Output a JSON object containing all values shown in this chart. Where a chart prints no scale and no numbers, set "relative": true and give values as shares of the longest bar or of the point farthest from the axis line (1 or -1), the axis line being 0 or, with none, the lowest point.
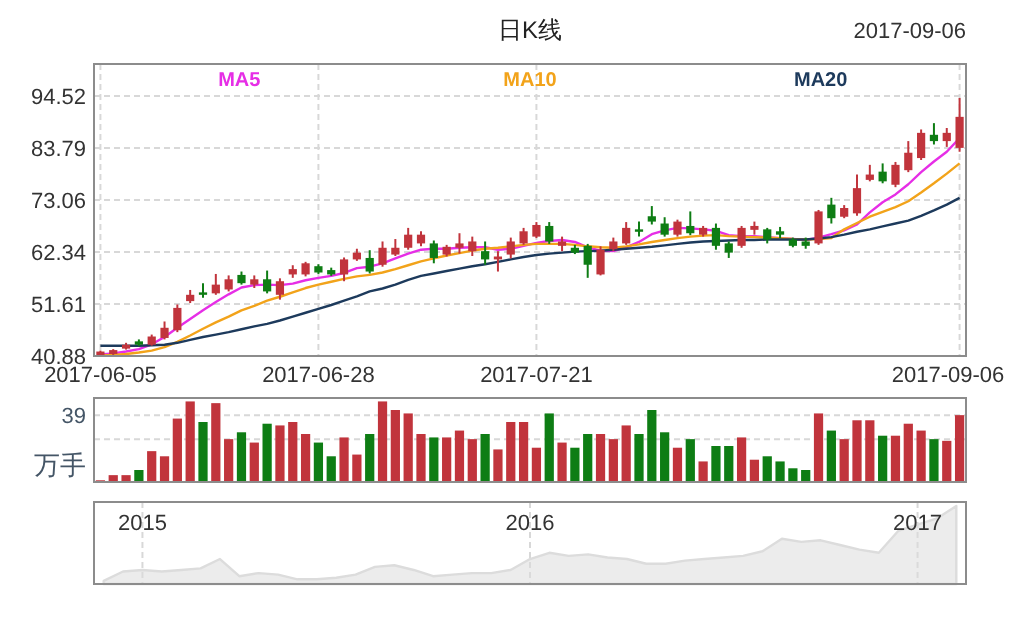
{
  "chart_data": [
    {
      "type": "candlestick",
      "title": "日K线",
      "annotations": [
        "2017-09-06"
      ],
      "categories": [
        "2017-06-05",
        null,
        null,
        null,
        null,
        null,
        null,
        null,
        null,
        null,
        null,
        null,
        null,
        null,
        null,
        null,
        null,
        "2017-06-28",
        null,
        null,
        null,
        null,
        null,
        null,
        null,
        null,
        null,
        null,
        null,
        null,
        null,
        null,
        null,
        null,
        "2017-07-21",
        null,
        null,
        null,
        null,
        null,
        null,
        null,
        null,
        null,
        null,
        null,
        null,
        null,
        null,
        null,
        null,
        null,
        null,
        null,
        null,
        null,
        null,
        null,
        null,
        null,
        null,
        null,
        null,
        null,
        null,
        null,
        null,
        "2017-09-06"
      ],
      "ohlc": [
        [
          41.0,
          42.0,
          40.9,
          41.8
        ],
        [
          41.3,
          42.3,
          41.1,
          42.1
        ],
        [
          42.4,
          43.6,
          42.2,
          43.2
        ],
        [
          43.9,
          44.3,
          42.9,
          43.2
        ],
        [
          43.2,
          45.3,
          43.0,
          44.9
        ],
        [
          44.6,
          48.0,
          44.3,
          46.7
        ],
        [
          46.2,
          51.5,
          45.8,
          50.8
        ],
        [
          52.2,
          54.5,
          51.8,
          53.5
        ],
        [
          54.0,
          55.9,
          52.9,
          53.5
        ],
        [
          53.8,
          57.8,
          53.5,
          55.6
        ],
        [
          54.6,
          57.5,
          54.2,
          56.7
        ],
        [
          57.6,
          58.3,
          55.6,
          55.9
        ],
        [
          55.6,
          57.5,
          54.9,
          56.7
        ],
        [
          56.7,
          58.5,
          53.8,
          54.2
        ],
        [
          53.5,
          56.9,
          52.5,
          56.3
        ],
        [
          57.7,
          59.6,
          57.0,
          58.8
        ],
        [
          57.7,
          60.3,
          57.3,
          60.0
        ],
        [
          59.4,
          59.8,
          57.8,
          58.1
        ],
        [
          58.6,
          59.1,
          57.4,
          57.7
        ],
        [
          57.7,
          61.2,
          56.3,
          60.8
        ],
        [
          60.8,
          63.0,
          60.5,
          62.2
        ],
        [
          61.1,
          62.7,
          57.9,
          58.3
        ],
        [
          59.7,
          64.5,
          59.3,
          63.2
        ],
        [
          61.8,
          65.0,
          61.5,
          63.2
        ],
        [
          63.2,
          67.3,
          62.8,
          65.9
        ],
        [
          64.1,
          66.6,
          63.5,
          65.9
        ],
        [
          64.1,
          64.7,
          60.0,
          61.1
        ],
        [
          61.8,
          63.8,
          61.4,
          63.4
        ],
        [
          63.2,
          66.2,
          62.0,
          64.1
        ],
        [
          62.5,
          65.5,
          61.5,
          64.5
        ],
        [
          62.5,
          64.5,
          59.7,
          60.8
        ],
        [
          60.8,
          62.5,
          58.3,
          61.4
        ],
        [
          61.8,
          65.3,
          61.0,
          64.5
        ],
        [
          64.1,
          67.3,
          63.8,
          66.6
        ],
        [
          65.5,
          68.5,
          65.2,
          67.9
        ],
        [
          67.7,
          68.5,
          64.0,
          64.5
        ],
        [
          63.6,
          65.5,
          62.5,
          64.5
        ],
        [
          63.2,
          63.8,
          61.9,
          62.2
        ],
        [
          63.6,
          64.0,
          57.0,
          59.7
        ],
        [
          57.7,
          63.5,
          57.5,
          62.8
        ],
        [
          62.9,
          65.3,
          62.5,
          64.5
        ],
        [
          64.1,
          68.5,
          63.8,
          67.3
        ],
        [
          67.0,
          68.6,
          65.5,
          66.5
        ],
        [
          69.7,
          71.8,
          68.0,
          68.6
        ],
        [
          68.2,
          69.5,
          65.5,
          65.9
        ],
        [
          65.9,
          69.0,
          65.5,
          68.6
        ],
        [
          67.7,
          70.7,
          65.8,
          66.2
        ],
        [
          65.9,
          67.7,
          65.5,
          67.3
        ],
        [
          67.3,
          68.2,
          62.8,
          63.6
        ],
        [
          64.1,
          64.5,
          61.1,
          62.2
        ],
        [
          63.6,
          67.7,
          63.2,
          67.3
        ],
        [
          66.9,
          68.6,
          65.9,
          67.7
        ],
        [
          67.0,
          67.3,
          64.1,
          64.9
        ],
        [
          66.6,
          67.5,
          65.2,
          65.9
        ],
        [
          64.9,
          65.3,
          63.3,
          63.6
        ],
        [
          64.5,
          65.3,
          63.0,
          63.6
        ],
        [
          64.1,
          71.0,
          63.8,
          70.7
        ],
        [
          72.1,
          73.5,
          68.2,
          69.3
        ],
        [
          69.6,
          72.0,
          69.3,
          71.4
        ],
        [
          70.3,
          78.3,
          69.8,
          75.5
        ],
        [
          77.2,
          80.3,
          76.9,
          78.3
        ],
        [
          78.9,
          80.6,
          76.5,
          76.9
        ],
        [
          76.2,
          80.9,
          75.7,
          80.3
        ],
        [
          79.2,
          85.2,
          78.8,
          82.8
        ],
        [
          81.7,
          87.6,
          81.3,
          86.9
        ],
        [
          86.5,
          88.9,
          84.5,
          85.2
        ],
        [
          85.2,
          87.9,
          84.0,
          86.9
        ],
        [
          83.8,
          94.1,
          83.0,
          90.2
        ]
      ],
      "colors": [
        "#c1343c",
        "#c1343c",
        "#c1343c",
        "#0e7d14",
        "#c1343c",
        "#c1343c",
        "#c1343c",
        "#c1343c",
        "#0e7d14",
        "#c1343c",
        "#c1343c",
        "#0e7d14",
        "#c1343c",
        "#0e7d14",
        "#c1343c",
        "#c1343c",
        "#c1343c",
        "#0e7d14",
        "#0e7d14",
        "#c1343c",
        "#c1343c",
        "#0e7d14",
        "#c1343c",
        "#c1343c",
        "#c1343c",
        "#c1343c",
        "#0e7d14",
        "#c1343c",
        "#c1343c",
        "#c1343c",
        "#0e7d14",
        "#c1343c",
        "#c1343c",
        "#c1343c",
        "#c1343c",
        "#0e7d14",
        "#c1343c",
        "#0e7d14",
        "#0e7d14",
        "#c1343c",
        "#c1343c",
        "#c1343c",
        "#0e7d14",
        "#0e7d14",
        "#0e7d14",
        "#c1343c",
        "#0e7d14",
        "#c1343c",
        "#0e7d14",
        "#0e7d14",
        "#c1343c",
        "#c1343c",
        "#0e7d14",
        "#0e7d14",
        "#0e7d14",
        "#0e7d14",
        "#c1343c",
        "#0e7d14",
        "#c1343c",
        "#c1343c",
        "#c1343c",
        "#0e7d14",
        "#c1343c",
        "#c1343c",
        "#c1343c",
        "#0e7d14",
        "#c1343c",
        "#c1343c"
      ],
      "series": [
        {
          "name": "MA5",
          "type": "line",
          "color": "#e62ee6",
          "values": [
            41.2,
            41.4,
            41.8,
            42.3,
            43.3,
            44.8,
            46.7,
            48.5,
            50.3,
            52.0,
            53.6,
            55.0,
            55.5,
            55.6,
            55.5,
            55.8,
            56.5,
            57.0,
            57.4,
            58.0,
            59.0,
            59.3,
            60.0,
            61.0,
            62.0,
            62.8,
            63.0,
            63.0,
            63.2,
            63.3,
            63.3,
            62.8,
            63.0,
            63.6,
            64.2,
            64.6,
            64.8,
            64.4,
            63.3,
            62.6,
            62.5,
            63.3,
            64.4,
            66.0,
            66.8,
            67.3,
            67.2,
            67.0,
            66.7,
            65.8,
            65.6,
            65.6,
            65.4,
            65.2,
            65.0,
            64.8,
            65.3,
            66.0,
            66.8,
            68.0,
            70.5,
            72.6,
            74.2,
            76.3,
            78.8,
            81.0,
            83.0,
            85.8
          ]
        },
        {
          "name": "MA10",
          "type": "line",
          "color": "#f2a31a",
          "values": [
            41.0,
            41.1,
            41.3,
            41.6,
            42.0,
            42.7,
            43.8,
            45.1,
            46.5,
            47.8,
            49.0,
            50.3,
            51.2,
            52.3,
            53.1,
            54.0,
            54.9,
            55.6,
            56.2,
            56.8,
            57.3,
            57.6,
            58.1,
            58.8,
            59.6,
            60.4,
            61.0,
            61.6,
            62.1,
            62.6,
            63.0,
            63.2,
            63.5,
            63.8,
            64.0,
            64.0,
            64.0,
            63.8,
            63.5,
            63.3,
            63.2,
            63.5,
            63.9,
            64.4,
            64.8,
            65.2,
            65.5,
            65.7,
            65.8,
            65.6,
            65.5,
            65.4,
            65.3,
            65.2,
            65.0,
            64.9,
            65.0,
            65.2,
            67.0,
            68.3,
            69.6,
            70.6,
            71.6,
            72.8,
            74.6,
            76.5,
            78.5,
            80.6
          ]
        },
        {
          "name": "MA20",
          "type": "line",
          "color": "#1d3a5c",
          "values": [
            43.0,
            43.0,
            43.0,
            43.0,
            43.1,
            43.2,
            43.6,
            44.2,
            44.8,
            45.3,
            45.8,
            46.4,
            47.0,
            47.5,
            48.2,
            49.0,
            49.8,
            50.6,
            51.4,
            52.3,
            53.2,
            54.2,
            54.8,
            55.6,
            56.6,
            57.4,
            57.9,
            58.4,
            58.9,
            59.4,
            59.8,
            60.3,
            60.8,
            61.3,
            61.7,
            62.0,
            62.2,
            62.4,
            62.5,
            62.6,
            62.8,
            63.0,
            63.2,
            63.4,
            63.7,
            64.0,
            64.3,
            64.5,
            64.6,
            64.7,
            64.8,
            64.8,
            64.9,
            64.9,
            64.9,
            64.9,
            65.1,
            65.4,
            65.9,
            66.5,
            67.0,
            67.6,
            68.2,
            68.8,
            69.8,
            70.9,
            72.1,
            73.5
          ]
        }
      ],
      "ylim": [
        40.88,
        101.1
      ],
      "yticks": [
        40.88,
        51.61,
        62.34,
        73.06,
        83.79,
        94.52
      ],
      "grid": true,
      "legend": "top"
    },
    {
      "type": "bar",
      "ylabel": "万手",
      "ylim": [
        0,
        49
      ],
      "yticks": [
        {
          "value": 25,
          "label": null
        },
        39
      ],
      "grid": "y",
      "categories": [
        null,
        null,
        null,
        null,
        null,
        null,
        null,
        null,
        null,
        null,
        null,
        null,
        null,
        null,
        null,
        null,
        null,
        null,
        null,
        null,
        null,
        null,
        null,
        null,
        null,
        null,
        null,
        null,
        null,
        null,
        null,
        null,
        null,
        null,
        null,
        null,
        null,
        null,
        null,
        null,
        null,
        null,
        null,
        null,
        null,
        null,
        null,
        null,
        null,
        null,
        null,
        null,
        null,
        null,
        null,
        null,
        null,
        null,
        null,
        null,
        null,
        null,
        null,
        null,
        null,
        null,
        null,
        null
      ],
      "values": [
        1,
        4,
        4,
        7,
        18,
        15,
        37,
        47,
        35,
        46,
        25,
        29,
        23,
        34,
        33,
        35,
        28,
        23,
        15,
        26,
        16,
        28,
        47,
        42,
        40,
        28,
        26,
        26,
        30,
        25,
        28,
        19,
        35,
        35,
        20,
        40,
        23,
        20,
        28,
        28,
        25,
        33,
        28,
        42,
        29,
        20,
        25,
        12,
        21,
        21,
        26,
        13,
        15,
        12,
        8,
        7,
        40,
        30,
        25,
        36,
        36,
        27,
        27,
        34,
        30,
        25,
        24,
        39
      ],
      "colors": [
        "#c1343c",
        "#c1343c",
        "#c1343c",
        "#0e7d14",
        "#c1343c",
        "#c1343c",
        "#c1343c",
        "#c1343c",
        "#0e7d14",
        "#c1343c",
        "#c1343c",
        "#0e7d14",
        "#c1343c",
        "#0e7d14",
        "#c1343c",
        "#c1343c",
        "#c1343c",
        "#0e7d14",
        "#0e7d14",
        "#c1343c",
        "#c1343c",
        "#0e7d14",
        "#c1343c",
        "#c1343c",
        "#c1343c",
        "#c1343c",
        "#0e7d14",
        "#c1343c",
        "#c1343c",
        "#c1343c",
        "#0e7d14",
        "#c1343c",
        "#c1343c",
        "#c1343c",
        "#c1343c",
        "#0e7d14",
        "#c1343c",
        "#0e7d14",
        "#0e7d14",
        "#c1343c",
        "#c1343c",
        "#c1343c",
        "#0e7d14",
        "#0e7d14",
        "#0e7d14",
        "#c1343c",
        "#0e7d14",
        "#c1343c",
        "#0e7d14",
        "#0e7d14",
        "#c1343c",
        "#c1343c",
        "#0e7d14",
        "#0e7d14",
        "#0e7d14",
        "#0e7d14",
        "#c1343c",
        "#0e7d14",
        "#c1343c",
        "#c1343c",
        "#c1343c",
        "#0e7d14",
        "#c1343c",
        "#c1343c",
        "#c1343c",
        "#0e7d14",
        "#c1343c",
        "#c1343c"
      ],
      "legend": false
    },
    {
      "type": "area",
      "relative": true,
      "categories": [
        null,
        null,
        "2015",
        null,
        null,
        null,
        null,
        null,
        null,
        null,
        null,
        null,
        null,
        null,
        null,
        null,
        null,
        null,
        null,
        null,
        null,
        null,
        "2016",
        null,
        null,
        null,
        null,
        null,
        null,
        null,
        null,
        null,
        null,
        null,
        null,
        null,
        null,
        null,
        null,
        null,
        null,
        null,
        "2017",
        null,
        null
      ],
      "values": [
        0.04,
        0.16,
        0.18,
        0.16,
        0.18,
        0.2,
        0.32,
        0.1,
        0.14,
        0.12,
        0.06,
        0.06,
        0.08,
        0.12,
        0.22,
        0.24,
        0.18,
        0.1,
        0.12,
        0.14,
        0.14,
        0.18,
        0.32,
        0.4,
        0.36,
        0.38,
        0.34,
        0.32,
        0.26,
        0.26,
        0.3,
        0.32,
        0.34,
        0.36,
        0.42,
        0.58,
        0.54,
        0.56,
        0.5,
        0.44,
        0.4,
        0.68,
        0.76,
        0.84,
        1.0
      ],
      "color": "#dcdcdc",
      "grid": "x"
    }
  ]
}
